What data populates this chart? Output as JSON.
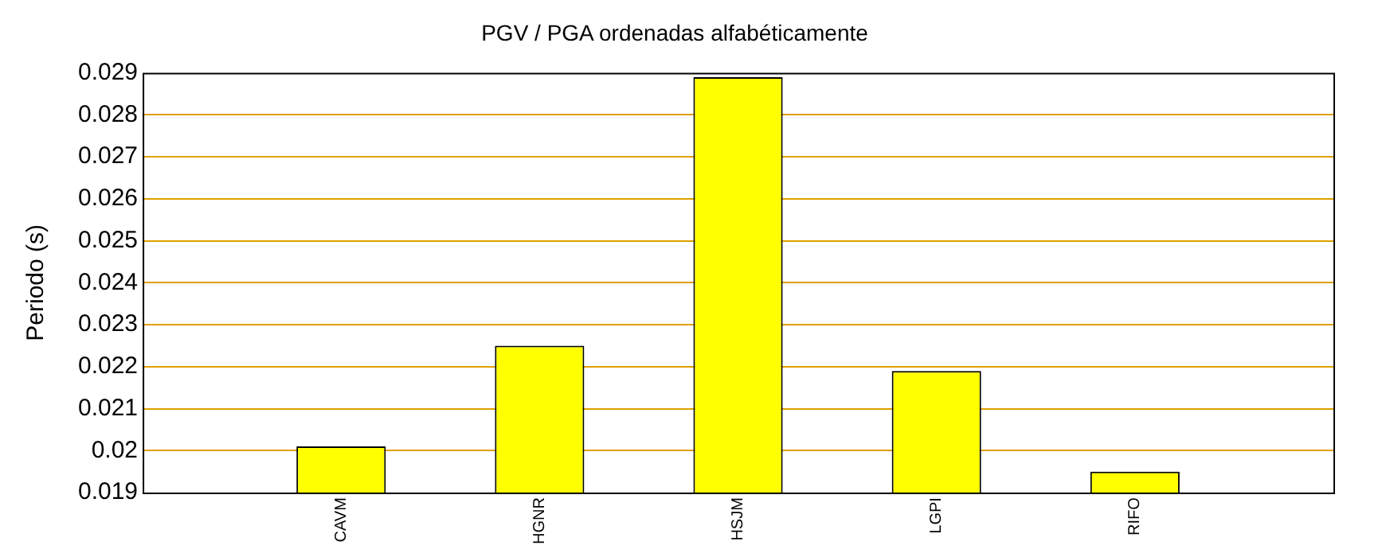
{
  "chart_data": {
    "type": "bar",
    "title": "PGV / PGA ordenadas alfabéticamente",
    "ylabel": "Periodo (s)",
    "categories": [
      "CAVM",
      "HGNR",
      "HSJM",
      "LGPI",
      "RIFO"
    ],
    "values": [
      0.0201,
      0.0225,
      0.0289,
      0.0219,
      0.0195
    ],
    "color": "#ffff00",
    "ylim": [
      0.019,
      0.029
    ],
    "yticks": [
      0.019,
      0.02,
      0.021,
      0.022,
      0.023,
      0.024,
      0.025,
      0.026,
      0.027,
      0.028,
      0.029
    ],
    "grid": "y",
    "legend": false
  }
}
